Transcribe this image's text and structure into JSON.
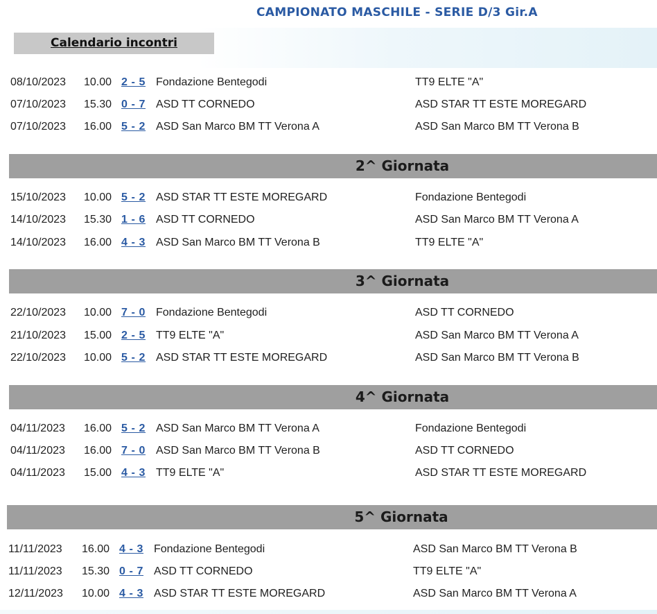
{
  "header": {
    "title": "CAMPIONATO MASCHILE - SERIE D/3 Gir.A",
    "calendar_tab": "Calendario incontri"
  },
  "colors": {
    "title_blue": "#2a5aa3",
    "round_bar_gray": "#9f9f9f",
    "tab_gray": "#c8c8c8"
  },
  "rounds": [
    {
      "title": "",
      "matches": [
        {
          "date": "08/10/2023",
          "time": "10.00",
          "score": "2 - 5",
          "home": "Fondazione Bentegodi",
          "away": "TT9 ELTE \"A\""
        },
        {
          "date": "07/10/2023",
          "time": "15.30",
          "score": "0 - 7",
          "home": "ASD TT CORNEDO",
          "away": "ASD STAR TT ESTE MOREGARD"
        },
        {
          "date": "07/10/2023",
          "time": "16.00",
          "score": "5 - 2",
          "home": "ASD San Marco BM TT Verona A",
          "away": "ASD San Marco BM TT Verona B"
        }
      ]
    },
    {
      "title": "2^ Giornata",
      "matches": [
        {
          "date": "15/10/2023",
          "time": "10.00",
          "score": "5 - 2",
          "home": "ASD STAR TT ESTE MOREGARD",
          "away": "Fondazione Bentegodi"
        },
        {
          "date": "14/10/2023",
          "time": "15.30",
          "score": "1 - 6",
          "home": "ASD TT CORNEDO",
          "away": "ASD San Marco BM TT Verona A"
        },
        {
          "date": "14/10/2023",
          "time": "16.00",
          "score": "4 - 3",
          "home": "ASD San Marco BM TT Verona B",
          "away": "TT9 ELTE \"A\""
        }
      ]
    },
    {
      "title": "3^ Giornata",
      "matches": [
        {
          "date": "22/10/2023",
          "time": "10.00",
          "score": "7 - 0",
          "home": "Fondazione Bentegodi",
          "away": "ASD TT CORNEDO"
        },
        {
          "date": "21/10/2023",
          "time": "15.00",
          "score": "2 - 5",
          "home": "TT9 ELTE \"A\"",
          "away": "ASD San Marco BM TT Verona A"
        },
        {
          "date": "22/10/2023",
          "time": "10.00",
          "score": "5 - 2",
          "home": "ASD STAR TT ESTE MOREGARD",
          "away": "ASD San Marco BM TT Verona B"
        }
      ]
    },
    {
      "title": "4^ Giornata",
      "matches": [
        {
          "date": "04/11/2023",
          "time": "16.00",
          "score": "5 - 2",
          "home": "ASD San Marco BM TT Verona A",
          "away": "Fondazione Bentegodi"
        },
        {
          "date": "04/11/2023",
          "time": "16.00",
          "score": "7 - 0",
          "home": "ASD San Marco BM TT Verona B",
          "away": "ASD TT CORNEDO"
        },
        {
          "date": "04/11/2023",
          "time": "15.00",
          "score": "4 - 3",
          "home": "TT9 ELTE \"A\"",
          "away": "ASD STAR TT ESTE MOREGARD"
        }
      ]
    },
    {
      "title": "5^ Giornata",
      "matches": [
        {
          "date": "11/11/2023",
          "time": "16.00",
          "score": "4 - 3",
          "home": "Fondazione Bentegodi",
          "away": "ASD San Marco BM TT Verona B"
        },
        {
          "date": "11/11/2023",
          "time": "15.30",
          "score": "0 - 7",
          "home": "ASD TT CORNEDO",
          "away": "TT9 ELTE \"A\""
        },
        {
          "date": "12/11/2023",
          "time": "10.00",
          "score": "4 - 3",
          "home": "ASD STAR TT ESTE MOREGARD",
          "away": "ASD San Marco BM TT Verona A"
        }
      ]
    }
  ]
}
